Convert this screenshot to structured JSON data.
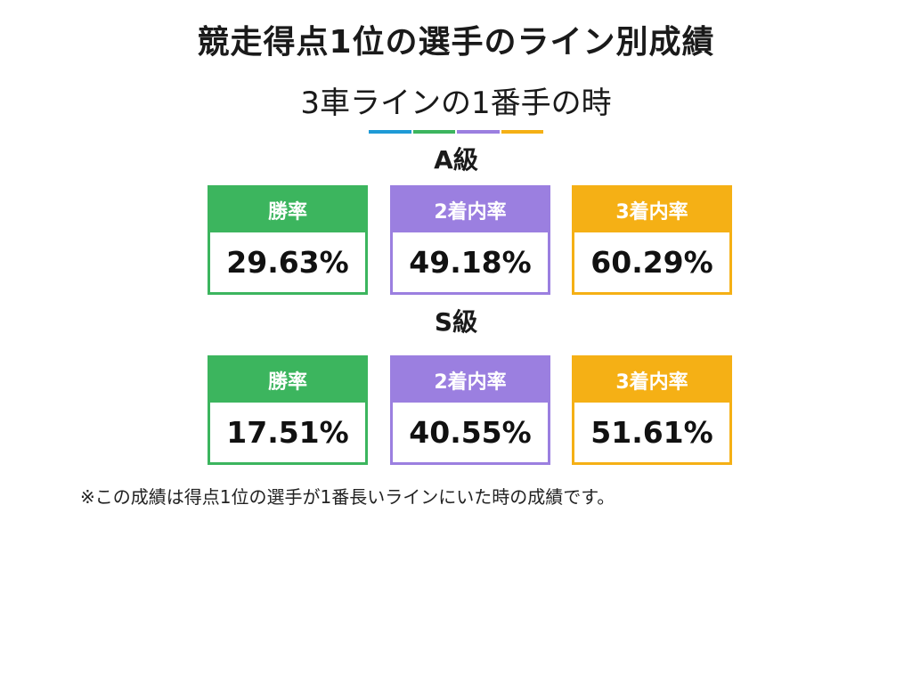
{
  "title": "競走得点1位の選手のライン別成績",
  "subtitle": "3車ラインの1番手の時",
  "divider_colors": [
    "#1e9ad6",
    "#3cb55e",
    "#9b7fe0",
    "#f5b015"
  ],
  "colors": {
    "win": "#3cb55e",
    "place2": "#9b7fe0",
    "place3": "#f5b015"
  },
  "a_class": {
    "label": "A級",
    "win_label": "勝率",
    "win_value": "29.63%",
    "place2_label": "2着内率",
    "place2_value": "49.18%",
    "place3_label": "3着内率",
    "place3_value": "60.29%"
  },
  "s_class": {
    "label": "S級",
    "win_label": "勝率",
    "win_value": "17.51%",
    "place2_label": "2着内率",
    "place2_value": "40.55%",
    "place3_label": "3着内率",
    "place3_value": "51.61%"
  },
  "note": "※この成績は得点1位の選手が1番長いラインにいた時の成績です。"
}
